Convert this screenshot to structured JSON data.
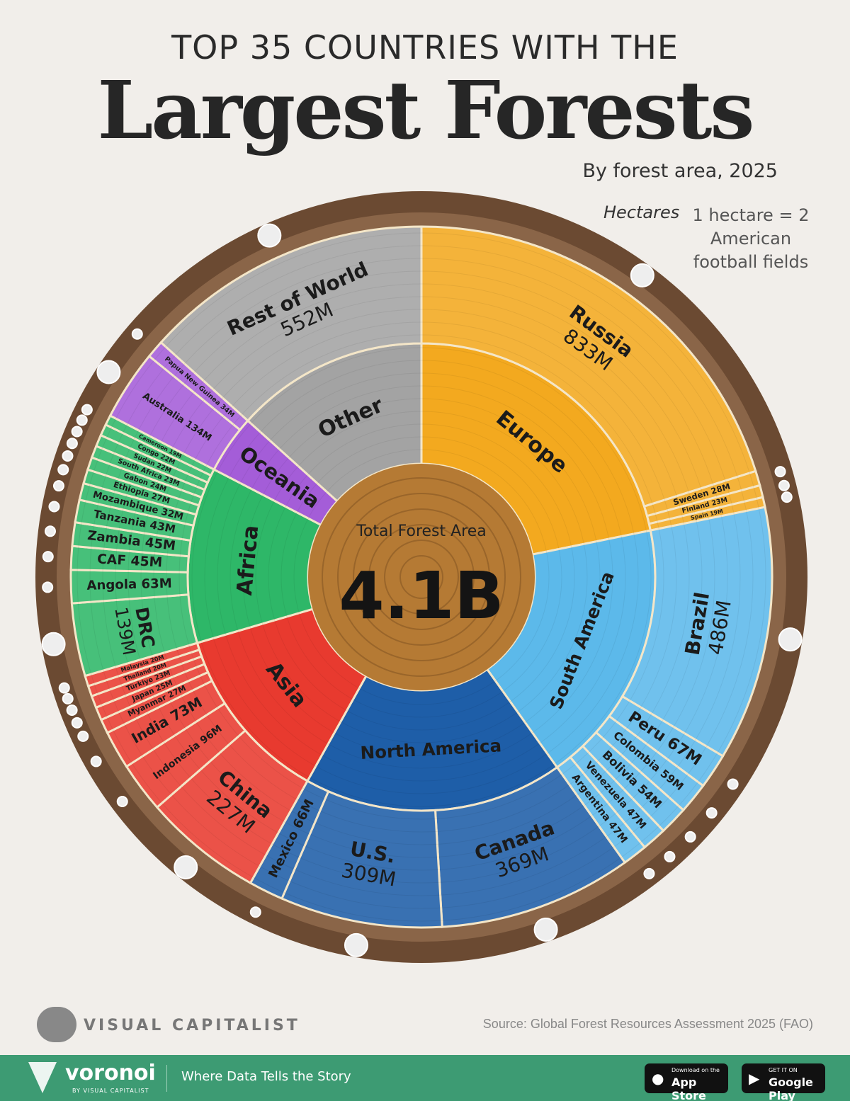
{
  "header": {
    "subtitle": "TOP 35 COUNTRIES WITH THE",
    "title": "Largest Forests",
    "byline": "By forest area, 2025",
    "unit": "Hectares",
    "note": "1 hectare = 2 American football fields"
  },
  "chart_data": {
    "type": "sunburst",
    "unit": "hectares",
    "center": {
      "label": "Total Forest Area",
      "value": "4.1B"
    },
    "colors": {
      "Europe": "#f3a91f",
      "South America": "#5cb9ea",
      "North America": "#1e5ea8",
      "Asia": "#e83a2f",
      "Africa": "#2eb768",
      "Oceania": "#a45dd8",
      "Other": "#a3a3a3",
      "core": "#b57a34",
      "bark": "#6b4a32"
    },
    "groups": [
      {
        "name": "Europe",
        "countries": [
          {
            "name": "Russia",
            "value": 833,
            "label": "833M"
          },
          {
            "name": "Sweden",
            "value": 28,
            "label": "28M"
          },
          {
            "name": "Finland",
            "value": 23,
            "label": "23M"
          },
          {
            "name": "Spain",
            "value": 19,
            "label": "19M"
          }
        ]
      },
      {
        "name": "South America",
        "countries": [
          {
            "name": "Brazil",
            "value": 486,
            "label": "486M"
          },
          {
            "name": "Peru",
            "value": 67,
            "label": "67M"
          },
          {
            "name": "Colombia",
            "value": 59,
            "label": "59M"
          },
          {
            "name": "Bolivia",
            "value": 54,
            "label": "54M"
          },
          {
            "name": "Venezuela",
            "value": 47,
            "label": "47M"
          },
          {
            "name": "Argentina",
            "value": 47,
            "label": "47M"
          }
        ]
      },
      {
        "name": "North America",
        "countries": [
          {
            "name": "Canada",
            "value": 369,
            "label": "369M"
          },
          {
            "name": "U.S.",
            "value": 309,
            "label": "309M"
          },
          {
            "name": "Mexico",
            "value": 66,
            "label": "66M"
          }
        ]
      },
      {
        "name": "Asia",
        "countries": [
          {
            "name": "China",
            "value": 227,
            "label": "227M"
          },
          {
            "name": "Indonesia",
            "value": 96,
            "label": "96M"
          },
          {
            "name": "India",
            "value": 73,
            "label": "73M"
          },
          {
            "name": "Myanmar",
            "value": 27,
            "label": "27M"
          },
          {
            "name": "Japan",
            "value": 25,
            "label": "25M"
          },
          {
            "name": "Türkiye",
            "value": 23,
            "label": "23M"
          },
          {
            "name": "Thailand",
            "value": 20,
            "label": "20M"
          },
          {
            "name": "Malaysia",
            "value": 20,
            "label": "20M"
          }
        ]
      },
      {
        "name": "Africa",
        "countries": [
          {
            "name": "DRC",
            "value": 139,
            "label": "139M"
          },
          {
            "name": "Angola",
            "value": 63,
            "label": "63M"
          },
          {
            "name": "CAF",
            "value": 45,
            "label": "45M"
          },
          {
            "name": "Zambia",
            "value": 45,
            "label": "45M"
          },
          {
            "name": "Tanzania",
            "value": 43,
            "label": "43M"
          },
          {
            "name": "Mozambique",
            "value": 32,
            "label": "32M"
          },
          {
            "name": "Ethiopia",
            "value": 27,
            "label": "27M"
          },
          {
            "name": "Gabon",
            "value": 24,
            "label": "24M"
          },
          {
            "name": "South Africa",
            "value": 23,
            "label": "23M"
          },
          {
            "name": "Sudan",
            "value": 22,
            "label": "22M"
          },
          {
            "name": "Congo",
            "value": 22,
            "label": "22M"
          },
          {
            "name": "Cameroon",
            "value": 19,
            "label": "19M"
          }
        ]
      },
      {
        "name": "Oceania",
        "countries": [
          {
            "name": "Australia",
            "value": 134,
            "label": "134M"
          },
          {
            "name": "Papua New Guinea",
            "value": 34,
            "label": "34M"
          }
        ]
      },
      {
        "name": "Other",
        "countries": [
          {
            "name": "Rest of World",
            "value": 552,
            "label": "552M"
          }
        ]
      }
    ]
  },
  "footer": {
    "brand": "VISUAL CAPITALIST",
    "source": "Source: Global Forest Resources Assessment 2025 (FAO)",
    "voronoi": "voronoi",
    "voronoi_sub": "BY VISUAL CAPITALIST",
    "tagline": "Where Data Tells the Story",
    "appstore_small": "Download on the",
    "appstore": "App Store",
    "gplay_small": "GET IT ON",
    "gplay": "Google Play"
  }
}
